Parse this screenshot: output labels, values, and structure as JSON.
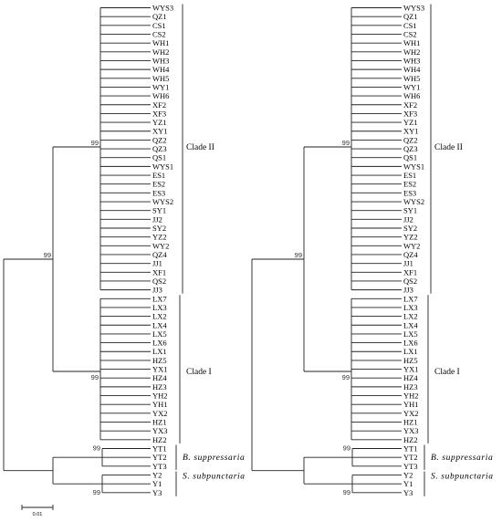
{
  "trees": [
    {
      "clade_ii_label": "Clade II",
      "clade_i_label": "Clade I",
      "clade_ii_taxa": [
        "WYS3",
        "QZ1",
        "CS1",
        "CS2",
        "WH1",
        "WH2",
        "WH3",
        "WH4",
        "WH5",
        "WY1",
        "WH6",
        "XF2",
        "XF3",
        "YZ1",
        "XY1",
        "QZ2",
        "QZ3",
        "QS1",
        "WYS1",
        "ES1",
        "ES2",
        "ES3",
        "WYS2",
        "SY1",
        "JJ2",
        "SY2",
        "YZ2",
        "WY2",
        "QZ4",
        "JJ1",
        "XF1",
        "QS2",
        "JJ3"
      ],
      "clade_i_taxa": [
        "LX7",
        "LX3",
        "LX2",
        "LX4",
        "LX5",
        "LX6",
        "LX1",
        "HZ5",
        "YX1",
        "HZ4",
        "HZ3",
        "YH2",
        "YH1",
        "YX2",
        "HZ1",
        "YX3",
        "HZ2"
      ],
      "b_label": "B. suppressaria",
      "b_taxa": [
        "YT1",
        "YT2",
        "YT3"
      ],
      "s_label": "S. subpunctaria",
      "s_taxa": [
        "Y2",
        "Y1",
        "Y3"
      ],
      "bootstrap": {
        "clade_ii": "99",
        "clade_i": "99",
        "ingroup": "99",
        "b": "99",
        "s": "99"
      },
      "scale_label": "0.01"
    },
    {
      "clade_ii_label": "Clade II",
      "clade_i_label": "Clade I",
      "clade_ii_taxa": [
        "WYS3",
        "QZ1",
        "CS1",
        "CS2",
        "WH1",
        "WH2",
        "WH3",
        "WH4",
        "WH5",
        "WY1",
        "WH6",
        "XF2",
        "XF3",
        "YZ1",
        "XY1",
        "QZ2",
        "QZ3",
        "QS1",
        "WYS1",
        "ES1",
        "ES2",
        "ES3",
        "WYS2",
        "SY1",
        "JJ2",
        "SY2",
        "YZ2",
        "WY2",
        "QZ4",
        "JJ1",
        "XF1",
        "QS2",
        "JJ3"
      ],
      "clade_i_taxa": [
        "LX7",
        "LX3",
        "LX2",
        "LX4",
        "LX5",
        "LX6",
        "LX1",
        "HZ5",
        "YX1",
        "HZ4",
        "HZ3",
        "YH2",
        "YH1",
        "YX2",
        "HZ1",
        "YX3",
        "HZ2"
      ],
      "b_label": "B. suppressaria",
      "b_taxa": [
        "YT1",
        "YT2",
        "YT3"
      ],
      "s_label": "S. subpunctaria",
      "s_taxa": [
        "Y2",
        "Y1",
        "Y3"
      ],
      "bootstrap": {
        "clade_ii": "99",
        "clade_i": "99",
        "ingroup": "99",
        "b": "99",
        "s": "99"
      },
      "scale_label": ""
    }
  ],
  "colors": {
    "line": "#222222",
    "text": "#000000",
    "bootstrap": "#333333"
  }
}
